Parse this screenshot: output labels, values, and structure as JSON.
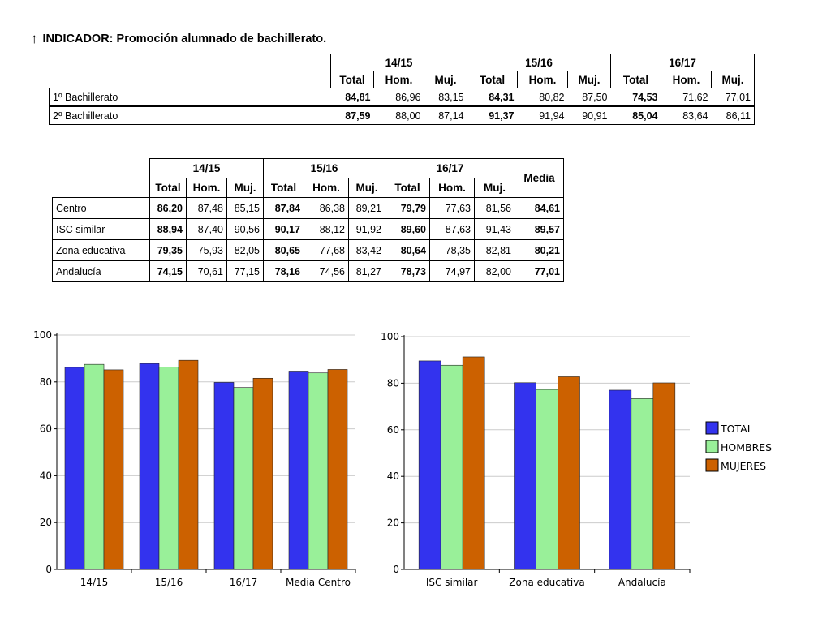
{
  "title": {
    "arrow": "↑",
    "text": "INDICADOR: Promoción alumnado de bachillerato."
  },
  "colors": {
    "total": "#3333ee",
    "hombres": "#99f099",
    "mujeres": "#cc6100",
    "grid": "#cccccc"
  },
  "table1": {
    "years": [
      "14/15",
      "15/16",
      "16/17"
    ],
    "subheaders": [
      "Total",
      "Hom.",
      "Muj."
    ],
    "rows": [
      {
        "label": "1º Bachillerato",
        "values": [
          "84,81",
          "86,96",
          "83,15",
          "84,31",
          "80,82",
          "87,50",
          "74,53",
          "71,62",
          "77,01"
        ]
      },
      {
        "label": "2º Bachillerato",
        "values": [
          "87,59",
          "88,00",
          "87,14",
          "91,37",
          "91,94",
          "90,91",
          "85,04",
          "83,64",
          "86,11"
        ]
      }
    ]
  },
  "table2": {
    "years": [
      "14/15",
      "15/16",
      "16/17"
    ],
    "subheaders": [
      "Total",
      "Hom.",
      "Muj."
    ],
    "media_header": "Media",
    "rows": [
      {
        "label": "Centro",
        "values": [
          "86,20",
          "87,48",
          "85,15",
          "87,84",
          "86,38",
          "89,21",
          "79,79",
          "77,63",
          "81,56"
        ],
        "media": "84,61"
      },
      {
        "label": "ISC similar",
        "values": [
          "88,94",
          "87,40",
          "90,56",
          "90,17",
          "88,12",
          "91,92",
          "89,60",
          "87,63",
          "91,43"
        ],
        "media": "89,57"
      },
      {
        "label": "Zona educativa",
        "values": [
          "79,35",
          "75,93",
          "82,05",
          "80,65",
          "77,68",
          "83,42",
          "80,64",
          "78,35",
          "82,81"
        ],
        "media": "80,21"
      },
      {
        "label": "Andalucía",
        "values": [
          "74,15",
          "70,61",
          "77,15",
          "78,16",
          "74,56",
          "81,27",
          "78,73",
          "74,97",
          "82,00"
        ],
        "media": "77,01"
      }
    ]
  },
  "chart_data": [
    {
      "type": "bar",
      "title": "",
      "categories": [
        "14/15",
        "15/16",
        "16/17",
        "Media Centro"
      ],
      "series": [
        {
          "name": "TOTAL",
          "values": [
            86.2,
            87.84,
            79.79,
            84.61
          ]
        },
        {
          "name": "HOMBRES",
          "values": [
            87.48,
            86.38,
            77.63,
            83.83
          ]
        },
        {
          "name": "MUJERES",
          "values": [
            85.15,
            89.21,
            81.56,
            85.31
          ]
        }
      ],
      "ylim": [
        0,
        100
      ],
      "yticks": [
        0,
        20,
        40,
        60,
        80,
        100
      ],
      "grid": true,
      "legend": "none"
    },
    {
      "type": "bar",
      "title": "",
      "categories": [
        "ISC similar",
        "Zona educativa",
        "Andalucía"
      ],
      "series": [
        {
          "name": "TOTAL",
          "values": [
            89.57,
            80.21,
            77.01
          ]
        },
        {
          "name": "HOMBRES",
          "values": [
            87.72,
            77.32,
            73.38
          ]
        },
        {
          "name": "MUJERES",
          "values": [
            91.3,
            82.76,
            80.14
          ]
        }
      ],
      "ylim": [
        0,
        100
      ],
      "yticks": [
        0,
        20,
        40,
        60,
        80,
        100
      ],
      "grid": true,
      "legend": "right"
    }
  ],
  "legend": [
    {
      "label": "TOTAL",
      "key": "total"
    },
    {
      "label": "HOMBRES",
      "key": "hombres"
    },
    {
      "label": "MUJERES",
      "key": "mujeres"
    }
  ]
}
